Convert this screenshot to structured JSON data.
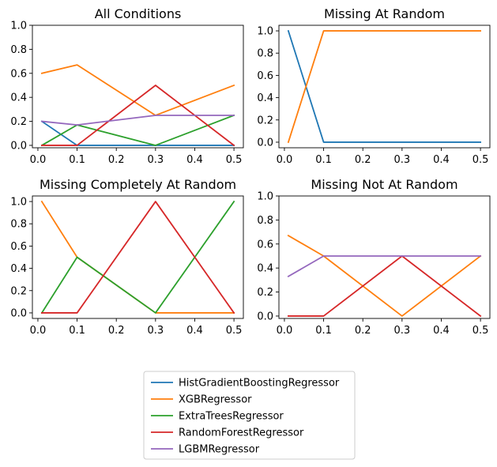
{
  "chart_data": [
    {
      "type": "line",
      "title": "All Conditions",
      "xlabel": "",
      "ylabel": "",
      "x": [
        0.01,
        0.1,
        0.3,
        0.5
      ],
      "xlim": [
        -0.014,
        0.524
      ],
      "ylim": [
        -0.02,
        1.0
      ],
      "xticks": [
        "0.0",
        "0.1",
        "0.2",
        "0.3",
        "0.4",
        "0.5"
      ],
      "yticks": [
        "0.0",
        "0.2",
        "0.4",
        "0.6",
        "0.8",
        "1.0"
      ],
      "grid": false,
      "series": [
        {
          "name": "HistGradientBoostingRegressor",
          "color": "#1f77b4",
          "values": [
            0.2,
            0.0,
            0.0,
            0.0
          ]
        },
        {
          "name": "XGBRegressor",
          "color": "#ff7f0e",
          "values": [
            0.6,
            0.67,
            0.25,
            0.5
          ]
        },
        {
          "name": "ExtraTreesRegressor",
          "color": "#2ca02c",
          "values": [
            0.0,
            0.17,
            0.0,
            0.25
          ]
        },
        {
          "name": "RandomForestRegressor",
          "color": "#d62728",
          "values": [
            0.0,
            0.0,
            0.5,
            0.0
          ]
        },
        {
          "name": "LGBMRegressor",
          "color": "#9467bd",
          "values": [
            0.2,
            0.17,
            0.25,
            0.25
          ]
        }
      ]
    },
    {
      "type": "line",
      "title": "Missing At Random",
      "xlabel": "",
      "ylabel": "",
      "x": [
        0.01,
        0.1,
        0.3,
        0.5
      ],
      "xlim": [
        -0.014,
        0.524
      ],
      "ylim": [
        -0.05,
        1.05
      ],
      "xticks": [
        "0.0",
        "0.1",
        "0.2",
        "0.3",
        "0.4",
        "0.5"
      ],
      "yticks": [
        "0.0",
        "0.2",
        "0.4",
        "0.6",
        "0.8",
        "1.0"
      ],
      "grid": false,
      "series": [
        {
          "name": "HistGradientBoostingRegressor",
          "color": "#1f77b4",
          "values": [
            1.0,
            0.0,
            0.0,
            0.0
          ]
        },
        {
          "name": "XGBRegressor",
          "color": "#ff7f0e",
          "values": [
            0.0,
            1.0,
            1.0,
            1.0
          ]
        }
      ]
    },
    {
      "type": "line",
      "title": "Missing Completely At Random",
      "xlabel": "",
      "ylabel": "",
      "x": [
        0.01,
        0.1,
        0.3,
        0.5
      ],
      "xlim": [
        -0.014,
        0.524
      ],
      "ylim": [
        -0.05,
        1.05
      ],
      "xticks": [
        "0.0",
        "0.1",
        "0.2",
        "0.3",
        "0.4",
        "0.5"
      ],
      "yticks": [
        "0.0",
        "0.2",
        "0.4",
        "0.6",
        "0.8",
        "1.0"
      ],
      "grid": false,
      "series": [
        {
          "name": "XGBRegressor",
          "color": "#ff7f0e",
          "values": [
            1.0,
            0.5,
            0.0,
            0.0
          ]
        },
        {
          "name": "ExtraTreesRegressor",
          "color": "#2ca02c",
          "values": [
            0.0,
            0.5,
            0.0,
            1.0
          ]
        },
        {
          "name": "RandomForestRegressor",
          "color": "#d62728",
          "values": [
            0.0,
            0.0,
            1.0,
            0.0
          ]
        }
      ]
    },
    {
      "type": "line",
      "title": "Missing Not At Random",
      "xlabel": "",
      "ylabel": "",
      "x": [
        0.01,
        0.1,
        0.3,
        0.5
      ],
      "xlim": [
        -0.014,
        0.524
      ],
      "ylim": [
        -0.02,
        1.0
      ],
      "xticks": [
        "0.0",
        "0.1",
        "0.2",
        "0.3",
        "0.4",
        "0.5"
      ],
      "yticks": [
        "0.0",
        "0.2",
        "0.4",
        "0.6",
        "0.8",
        "1.0"
      ],
      "grid": false,
      "series": [
        {
          "name": "XGBRegressor",
          "color": "#ff7f0e",
          "values": [
            0.67,
            0.5,
            0.0,
            0.5
          ]
        },
        {
          "name": "RandomForestRegressor",
          "color": "#d62728",
          "values": [
            0.0,
            0.0,
            0.5,
            0.0
          ]
        },
        {
          "name": "LGBMRegressor",
          "color": "#9467bd",
          "values": [
            0.33,
            0.5,
            0.5,
            0.5
          ]
        }
      ]
    }
  ],
  "legend": {
    "placement": "bottom-center",
    "entries": [
      {
        "label": "HistGradientBoostingRegressor",
        "color": "#1f77b4"
      },
      {
        "label": "XGBRegressor",
        "color": "#ff7f0e"
      },
      {
        "label": "ExtraTreesRegressor",
        "color": "#2ca02c"
      },
      {
        "label": "RandomForestRegressor",
        "color": "#d62728"
      },
      {
        "label": "LGBMRegressor",
        "color": "#9467bd"
      }
    ]
  }
}
